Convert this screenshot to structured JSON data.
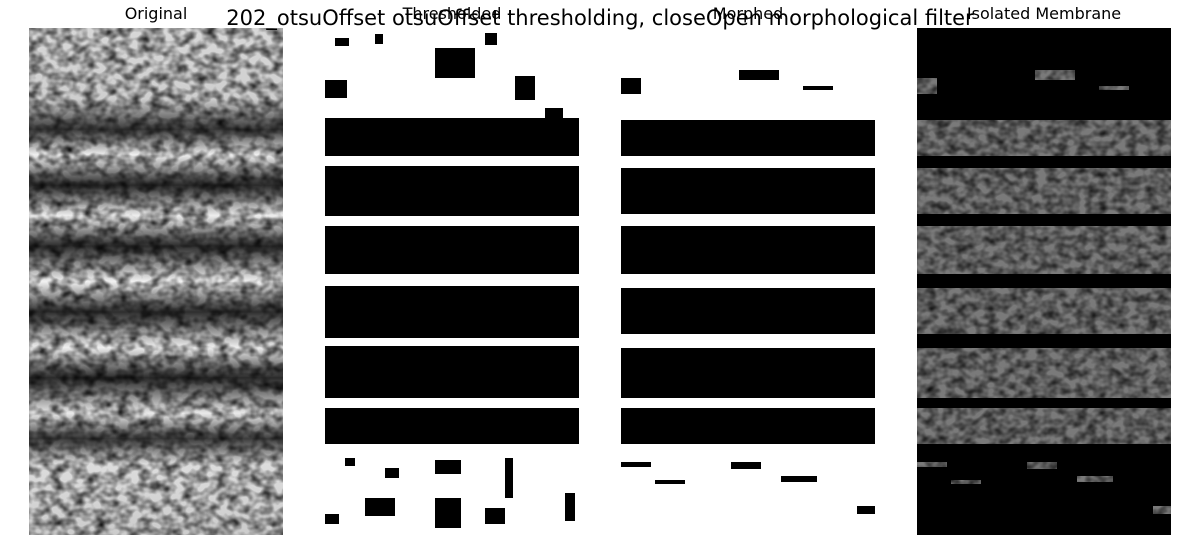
{
  "figure": {
    "suptitle": "202_otsuOffset otsuOffset thresholding, closeOpen morphological filter"
  },
  "panels": [
    {
      "title": "Original",
      "kind": "grayscale-micrograph"
    },
    {
      "title": "Thresholded",
      "kind": "binary-mask"
    },
    {
      "title": "Morphed",
      "kind": "binary-mask-smoothed"
    },
    {
      "title": "Isolated Membrane",
      "kind": "masked-grayscale"
    }
  ]
}
